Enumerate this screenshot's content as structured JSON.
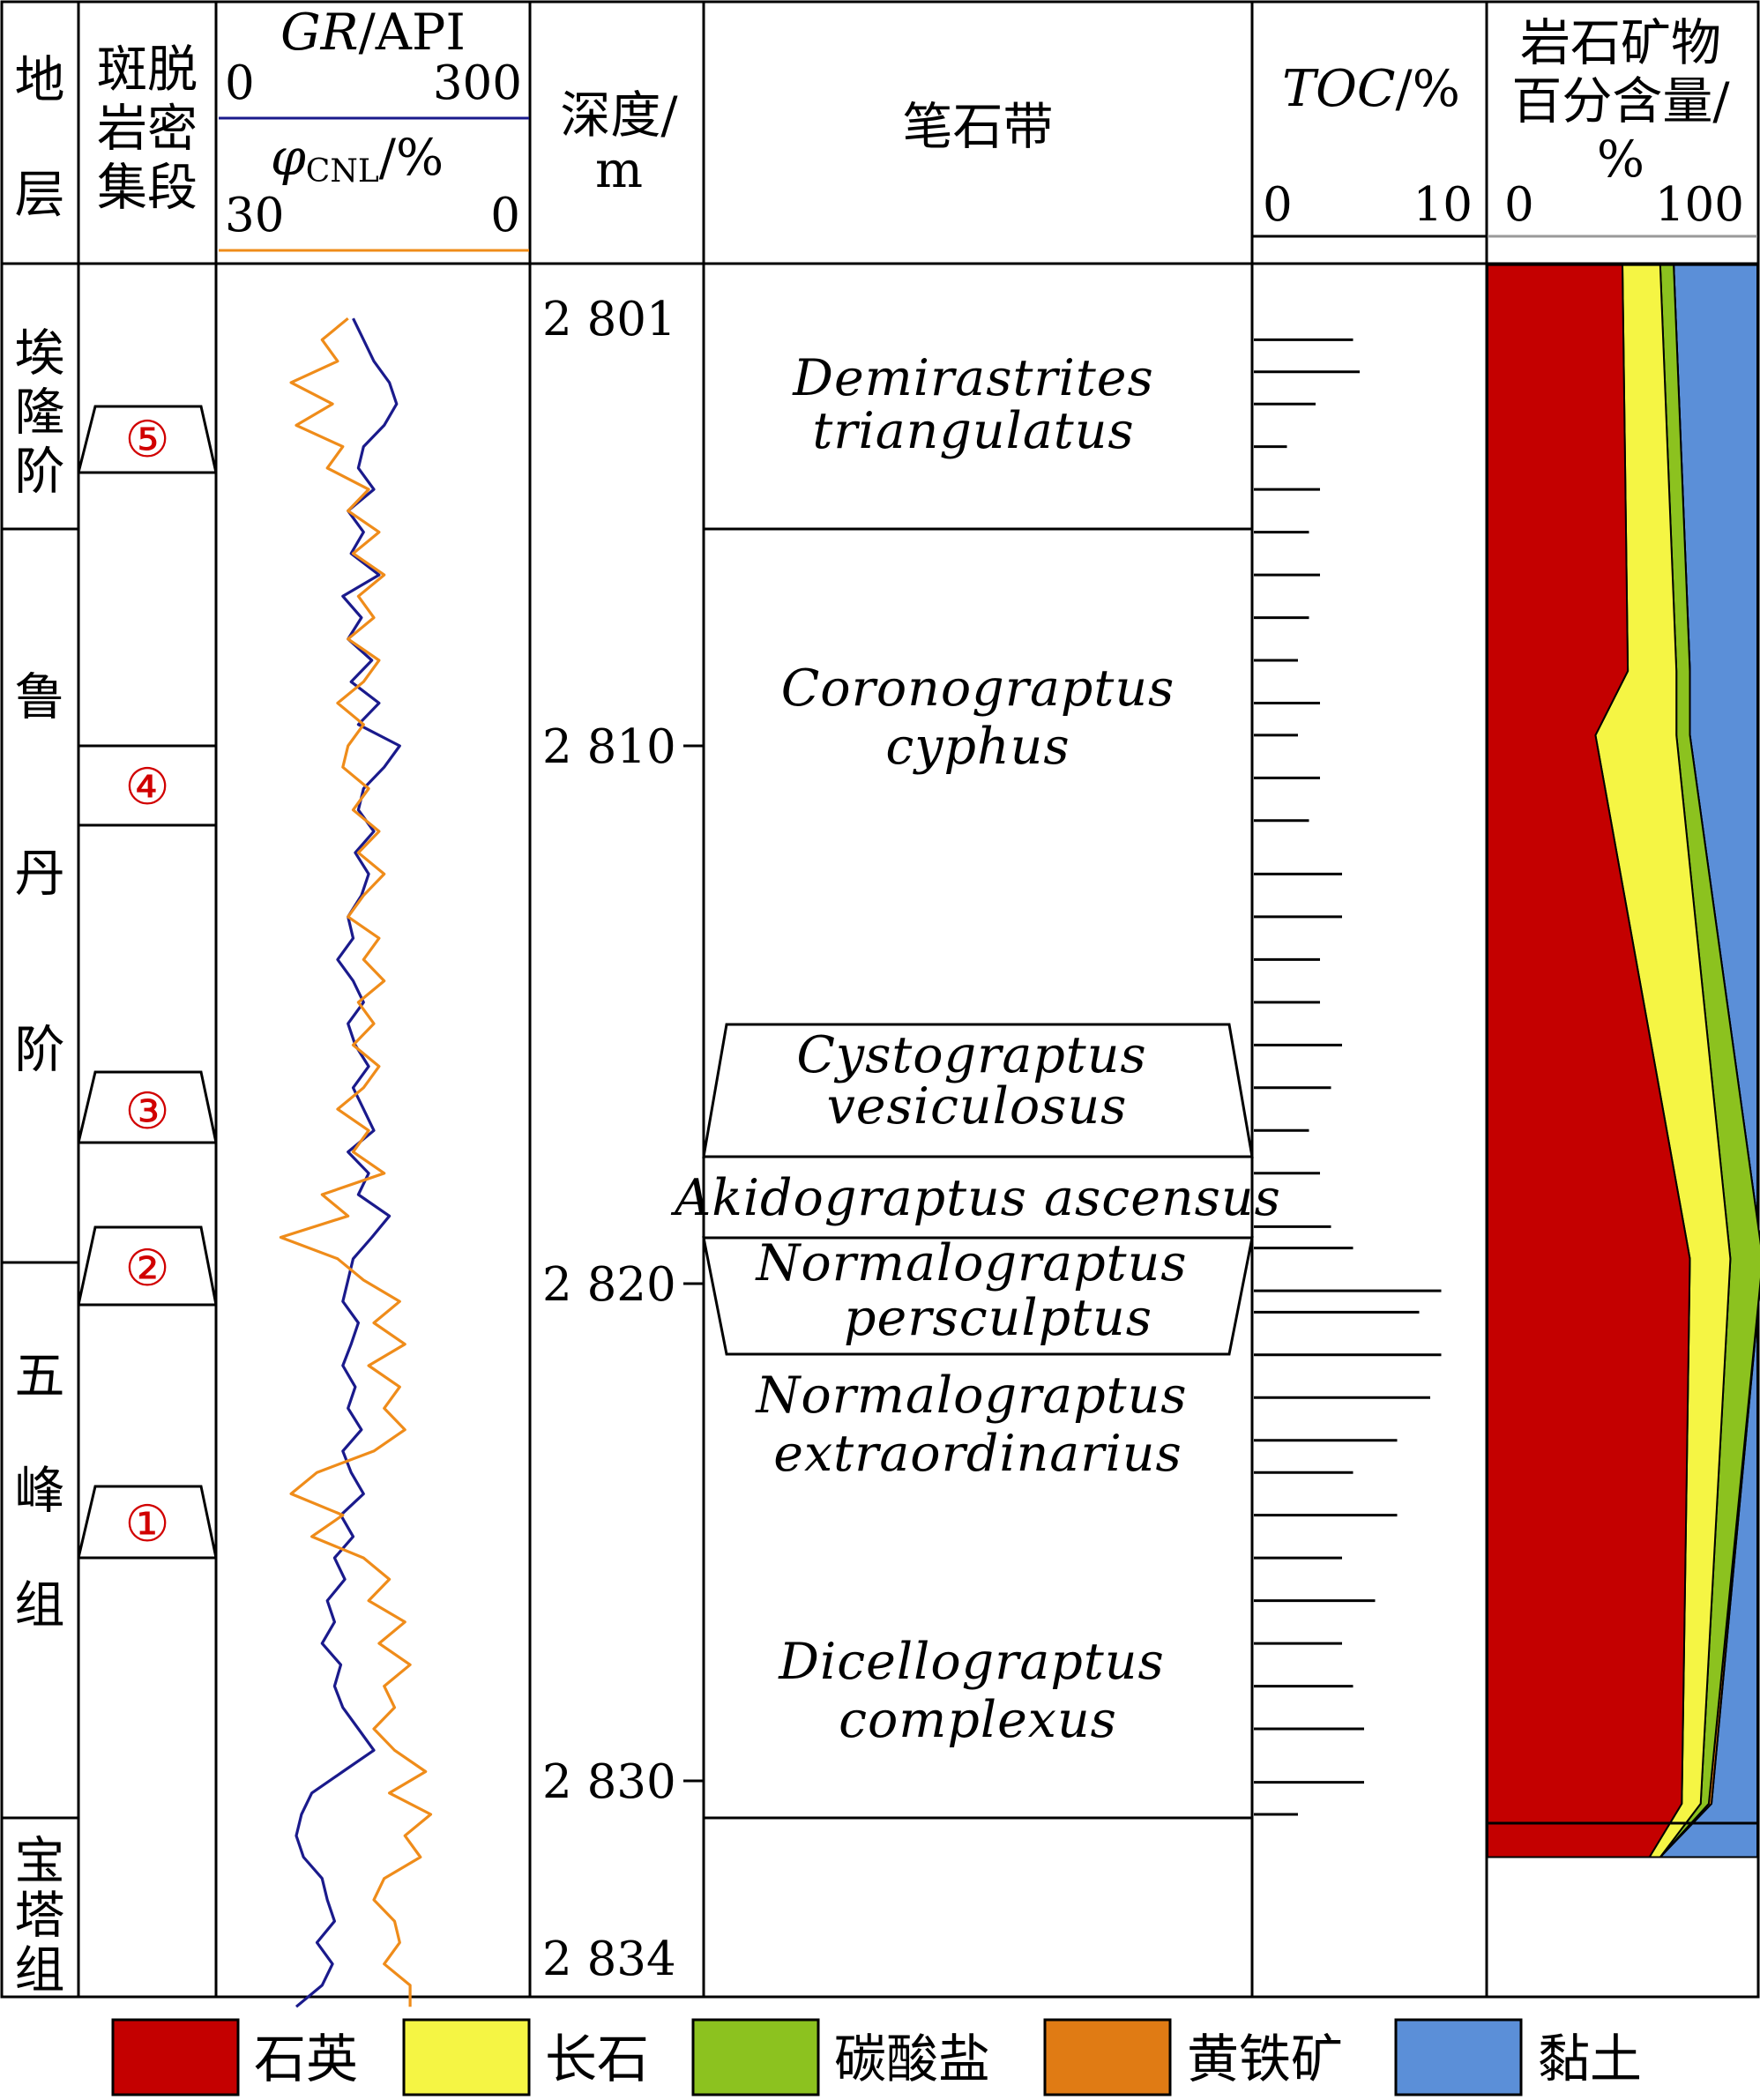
{
  "headers": {
    "stratum_chars": [
      "地",
      "层"
    ],
    "submember_lines": [
      "斑脱",
      "岩密",
      "集段"
    ],
    "gr_label_italic": "GR",
    "gr_label_rest": "/API",
    "gr_min": "0",
    "gr_max": "300",
    "cnl_symbol": "φ",
    "cnl_subscript": "CNL",
    "cnl_unit": "/%",
    "cnl_left": "30",
    "cnl_right": "0",
    "depth_lines": [
      "深度/",
      "m"
    ],
    "graptolite_zone": "笔石带",
    "toc_label_italic": "TOC",
    "toc_label_rest": "/%",
    "toc_min": "0",
    "toc_max": "10",
    "mineral_lines": [
      "岩石矿物",
      "百分含量/",
      "%"
    ],
    "mineral_min": "0",
    "mineral_max": "100"
  },
  "strata": [
    {
      "chars": [
        "埃",
        "隆",
        "阶"
      ]
    },
    {
      "chars": [
        "鲁",
        "丹",
        "阶"
      ]
    },
    {
      "chars": [
        "五",
        "峰",
        "组"
      ]
    },
    {
      "chars": [
        "宝",
        "塔",
        "组"
      ]
    }
  ],
  "bentonite_members": [
    "⑤",
    "④",
    "③",
    "②",
    "①"
  ],
  "depth_ticks": [
    "2 801",
    "2 810",
    "2 820",
    "2 830",
    "2 834"
  ],
  "graptolite_zones": [
    {
      "lines": [
        "Demirastrites",
        "triangulatus"
      ]
    },
    {
      "lines": [
        "Coronograptus",
        "cyphus"
      ]
    },
    {
      "lines": [
        "Cystograptus",
        "vesiculosus"
      ]
    },
    {
      "lines": [
        "Akidograptus ascensus"
      ]
    },
    {
      "lines": [
        "Normalograptus",
        "persculptus"
      ]
    },
    {
      "lines": [
        "Normalograptus",
        "extraordinarius"
      ]
    },
    {
      "lines": [
        "Dicellograptus",
        "complexus"
      ]
    }
  ],
  "legend": [
    {
      "label": "石英",
      "color": "#c40000"
    },
    {
      "label": "长石",
      "color": "#f5f544"
    },
    {
      "label": "碳酸盐",
      "color": "#8cc21f"
    },
    {
      "label": "黄铁矿",
      "color": "#e07b14"
    },
    {
      "label": "黏土",
      "color": "#5b8fd8"
    }
  ],
  "chart_data": [
    {
      "type": "line",
      "title": "",
      "xlabel": "GR/API",
      "ylabel": "深度/m",
      "xlim": [
        0,
        300
      ],
      "ylim": [
        2834,
        2799.5
      ],
      "series": [
        {
          "name": "GR",
          "color": "#1a1a8c",
          "depth": [
            2802.0,
            2802.4,
            2802.8,
            2803.2,
            2803.6,
            2804.0,
            2804.4,
            2804.8,
            2805.2,
            2805.6,
            2806.0,
            2806.4,
            2806.8,
            2807.2,
            2807.6,
            2808.0,
            2808.4,
            2808.8,
            2809.2,
            2809.6,
            2810.0,
            2810.4,
            2810.8,
            2811.2,
            2811.6,
            2812.0,
            2812.4,
            2812.8,
            2813.2,
            2813.6,
            2814.0,
            2814.4,
            2814.8,
            2815.2,
            2815.6,
            2816.0,
            2816.4,
            2816.8,
            2817.2,
            2817.6,
            2818.0,
            2818.4,
            2818.8,
            2819.2,
            2819.6,
            2820.0,
            2820.4,
            2820.8,
            2821.2,
            2821.6,
            2822.0,
            2822.4,
            2822.8,
            2823.2,
            2823.6,
            2824.0,
            2824.4,
            2824.8,
            2825.2,
            2825.6,
            2826.0,
            2826.4,
            2826.8,
            2827.2,
            2827.6,
            2828.0,
            2828.4,
            2828.8,
            2829.2,
            2829.6,
            2830.0,
            2830.4,
            2830.8,
            2831.2,
            2831.6,
            2832.0,
            2832.4,
            2832.8,
            2833.2,
            2833.6
          ],
          "values": [
            130,
            140,
            150,
            165,
            172,
            160,
            140,
            135,
            150,
            125,
            140,
            128,
            155,
            120,
            138,
            125,
            148,
            128,
            155,
            135,
            175,
            160,
            140,
            135,
            150,
            132,
            145,
            138,
            125,
            130,
            115,
            130,
            140,
            125,
            132,
            145,
            130,
            140,
            150,
            125,
            145,
            135,
            165,
            148,
            130,
            125,
            120,
            135,
            128,
            120,
            132,
            125,
            138,
            120,
            128,
            140,
            118,
            130,
            112,
            122,
            105,
            112,
            100,
            118,
            112,
            120,
            135,
            150,
            120,
            90,
            80,
            75,
            82,
            100,
            105,
            112,
            95,
            110,
            100,
            75
          ]
        },
        {
          "name": "φCNL",
          "color": "#ef8c1a",
          "value_axis": [
            30,
            0
          ],
          "depth": [
            2802.0,
            2802.4,
            2802.8,
            2803.2,
            2803.6,
            2804.0,
            2804.4,
            2804.8,
            2805.2,
            2805.6,
            2806.0,
            2806.4,
            2806.8,
            2807.2,
            2807.6,
            2808.0,
            2808.4,
            2808.8,
            2809.2,
            2809.6,
            2810.0,
            2810.4,
            2810.8,
            2811.2,
            2811.6,
            2812.0,
            2812.4,
            2812.8,
            2813.2,
            2813.6,
            2814.0,
            2814.4,
            2814.8,
            2815.2,
            2815.6,
            2816.0,
            2816.4,
            2816.8,
            2817.2,
            2817.6,
            2818.0,
            2818.4,
            2818.8,
            2819.2,
            2819.6,
            2820.0,
            2820.4,
            2820.8,
            2821.2,
            2821.6,
            2822.0,
            2822.4,
            2822.8,
            2823.2,
            2823.6,
            2824.0,
            2824.4,
            2824.8,
            2825.2,
            2825.6,
            2826.0,
            2826.4,
            2826.8,
            2827.2,
            2827.6,
            2828.0,
            2828.4,
            2828.8,
            2829.2,
            2829.6,
            2830.0,
            2830.4,
            2830.8,
            2831.2,
            2831.6,
            2832.0,
            2832.4,
            2832.8,
            2833.2,
            2833.6
          ],
          "values": [
            17.5,
            20.0,
            18.5,
            23.0,
            19.0,
            22.5,
            18.0,
            19.5,
            15.5,
            17.5,
            14.5,
            17.0,
            14.0,
            16.5,
            15.0,
            17.5,
            14.5,
            16.0,
            18.5,
            16.0,
            17.5,
            18.0,
            15.5,
            17.0,
            14.5,
            16.5,
            14.0,
            16.0,
            17.5,
            14.5,
            16.0,
            14.0,
            16.5,
            15.0,
            17.0,
            14.5,
            16.0,
            18.5,
            15.5,
            17.0,
            14.0,
            20.0,
            17.5,
            24.0,
            18.5,
            16.0,
            12.5,
            15.0,
            12.0,
            15.5,
            12.5,
            14.0,
            12.0,
            15.0,
            20.5,
            23.0,
            18.0,
            21.0,
            16.0,
            13.5,
            15.5,
            12.0,
            14.5,
            11.5,
            14.0,
            13.0,
            15.0,
            13.0,
            10.0,
            13.5,
            9.5,
            12.0,
            10.5,
            14.0,
            15.0,
            13.0,
            12.5,
            14.0,
            11.5,
            11.5
          ]
        }
      ]
    },
    {
      "type": "bar",
      "title": "",
      "xlabel": "TOC/%",
      "xlim": [
        0,
        10
      ],
      "depth": [
        2802.4,
        2803.0,
        2803.6,
        2804.4,
        2805.2,
        2806.0,
        2806.8,
        2807.6,
        2808.4,
        2809.2,
        2809.8,
        2810.6,
        2811.4,
        2812.4,
        2813.2,
        2814.0,
        2814.8,
        2815.6,
        2816.4,
        2817.2,
        2818.0,
        2819.0,
        2819.4,
        2820.2,
        2820.6,
        2821.4,
        2822.2,
        2823.0,
        2823.6,
        2824.4,
        2825.2,
        2826.0,
        2826.8,
        2827.6,
        2828.4,
        2829.4,
        2830.0
      ],
      "values": [
        4.5,
        4.8,
        2.8,
        1.5,
        3.0,
        2.5,
        3.0,
        2.5,
        2.0,
        3.0,
        2.0,
        3.0,
        2.5,
        4.0,
        4.0,
        3.0,
        3.0,
        4.0,
        3.5,
        2.5,
        3.0,
        3.5,
        4.5,
        8.5,
        7.5,
        8.5,
        8.0,
        6.5,
        4.5,
        6.5,
        4.0,
        5.5,
        4.0,
        4.5,
        5.0,
        5.0,
        2.0
      ]
    },
    {
      "type": "area",
      "title": "",
      "xlabel": "岩石矿物百分含量/%",
      "xlim": [
        0,
        100
      ],
      "depth": [
        2801.0,
        2808.6,
        2809.8,
        2819.6,
        2829.8,
        2830.8
      ],
      "series": [
        {
          "name": "石英",
          "color": "#c40000",
          "values": [
            50,
            52,
            40,
            75,
            72,
            60
          ]
        },
        {
          "name": "长石",
          "color": "#f5f544",
          "values": [
            14,
            18,
            30,
            15,
            7,
            4
          ]
        },
        {
          "name": "碳酸盐",
          "color": "#8cc21f",
          "values": [
            5,
            5,
            5,
            12,
            3,
            0
          ]
        },
        {
          "name": "黄铁矿",
          "color": "#e07b14",
          "values": [
            0,
            0,
            0,
            0,
            1,
            0
          ]
        },
        {
          "name": "黏土",
          "color": "#5b8fd8",
          "values": [
            31,
            25,
            25,
            -2,
            17,
            36
          ]
        }
      ]
    }
  ]
}
